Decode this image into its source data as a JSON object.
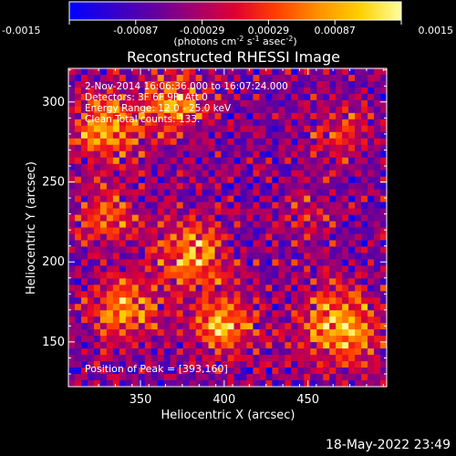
{
  "colorbar": {
    "ticks": [
      "-0.0015",
      "-0.00087",
      "-0.00029",
      "0.00029",
      "0.00087",
      "0.0015"
    ],
    "units_prefix": "(photons cm",
    "units_exp1": "-2",
    "units_mid1": " s",
    "units_exp2": "-1",
    "units_mid2": " asec",
    "units_exp3": "-2",
    "units_suffix": ")",
    "palette": [
      "#0000ff",
      "#3000d0",
      "#6000a0",
      "#a00070",
      "#e00030",
      "#ff4000",
      "#ff9000",
      "#ffd000",
      "#ffffa0"
    ]
  },
  "chart_data": {
    "type": "heatmap",
    "title": "Reconstructed RHESSI Image",
    "xlabel": "Heliocentric X (arcsec)",
    "ylabel": "Heliocentric Y (arcsec)",
    "xlim": [
      307,
      497
    ],
    "ylim": [
      122,
      321
    ],
    "xticks": [
      350,
      400,
      450
    ],
    "yticks": [
      150,
      200,
      250,
      300
    ],
    "annotations": [
      "2-Nov-2014 16:06:36.000 to 16:07:24.000",
      "Detectors: 3F 6F 9F, Att 0",
      "Energy Range: 12.0 - 25.0 keV",
      "Clean     Total counts: 133."
    ],
    "peak_label": "Position of Peak = [393,160]",
    "peak_position": [
      393,
      160
    ],
    "energy_range_kev": [
      12.0,
      25.0
    ],
    "total_counts": 133,
    "colorbar_range": [
      -0.0015,
      0.0015
    ]
  },
  "footer": {
    "timestamp": "18-May-2022 23:49"
  }
}
